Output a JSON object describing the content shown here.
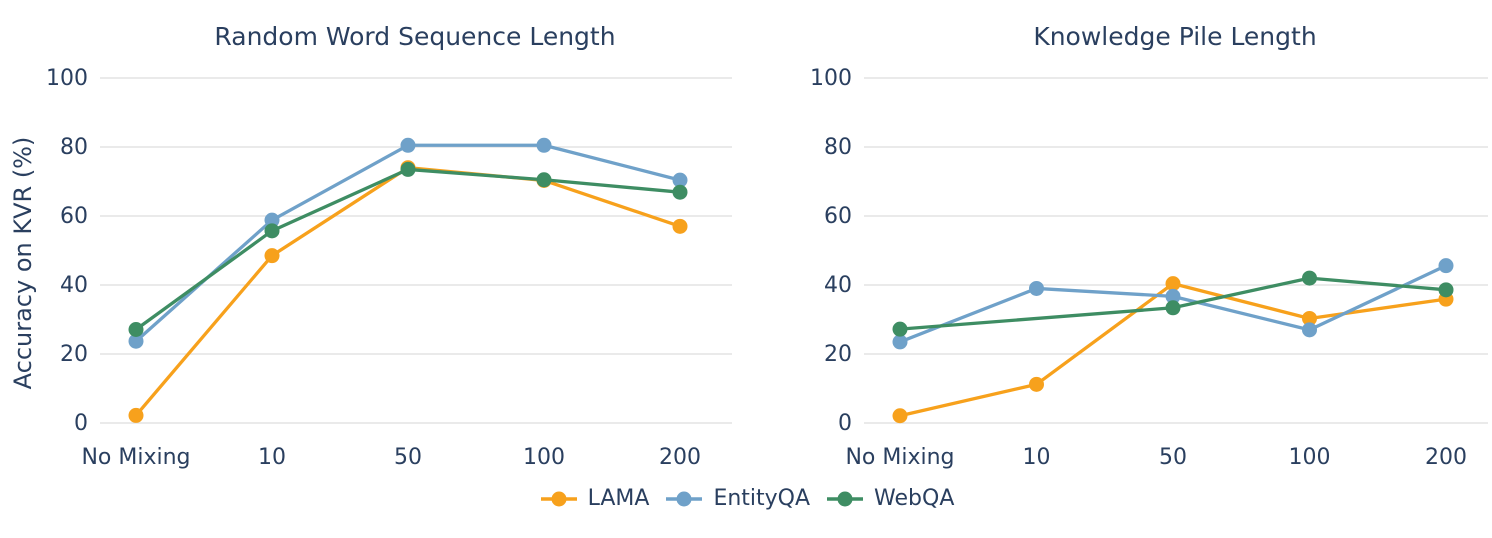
{
  "ylabel": "Accuracy on KVR (%)",
  "style": {
    "text_color": "#2A3F5F",
    "grid_color": "#DEDEDE",
    "background": "#FFFFFF"
  },
  "legend": {
    "position": "bottom-center",
    "items": [
      {
        "label": "LAMA",
        "color": "#F7A11C"
      },
      {
        "label": "EntityQA",
        "color": "#6FA1C9"
      },
      {
        "label": "WebQA",
        "color": "#3E8D63"
      }
    ]
  },
  "chart_data": [
    {
      "type": "line",
      "title": "Random Word Sequence Length",
      "categories": [
        "No Mixing",
        "10",
        "50",
        "100",
        "200"
      ],
      "series": [
        {
          "name": "LAMA",
          "color": "#F7A11C",
          "values": [
            2.2,
            48.5,
            74,
            70.3,
            57
          ]
        },
        {
          "name": "EntityQA",
          "color": "#6FA1C9",
          "values": [
            23.7,
            58.8,
            80.5,
            80.5,
            70.4
          ]
        },
        {
          "name": "WebQA",
          "color": "#3E8D63",
          "values": [
            27.1,
            55.7,
            73.5,
            70.5,
            66.9
          ]
        }
      ],
      "ylabel": "Accuracy on KVR (%)",
      "xlabel": "",
      "ylim": [
        0,
        100
      ],
      "yticks": [
        0,
        20,
        40,
        60,
        80,
        100
      ],
      "grid": "horizontal"
    },
    {
      "type": "line",
      "title": "Knowledge Pile Length",
      "categories": [
        "No Mixing",
        "10",
        "50",
        "100",
        "200"
      ],
      "series": [
        {
          "name": "LAMA",
          "color": "#F7A11C",
          "values": [
            2.1,
            11.2,
            40.4,
            30.3,
            35.9
          ]
        },
        {
          "name": "EntityQA",
          "color": "#6FA1C9",
          "values": [
            23.5,
            39,
            36.7,
            27,
            45.6
          ]
        },
        {
          "name": "WebQA",
          "color": "#3E8D63",
          "values": [
            27.2,
            null,
            33.4,
            42,
            38.6
          ]
        }
      ],
      "ylabel": "",
      "xlabel": "",
      "ylim": [
        0,
        100
      ],
      "yticks": [
        0,
        20,
        40,
        60,
        80,
        100
      ],
      "grid": "horizontal"
    }
  ]
}
